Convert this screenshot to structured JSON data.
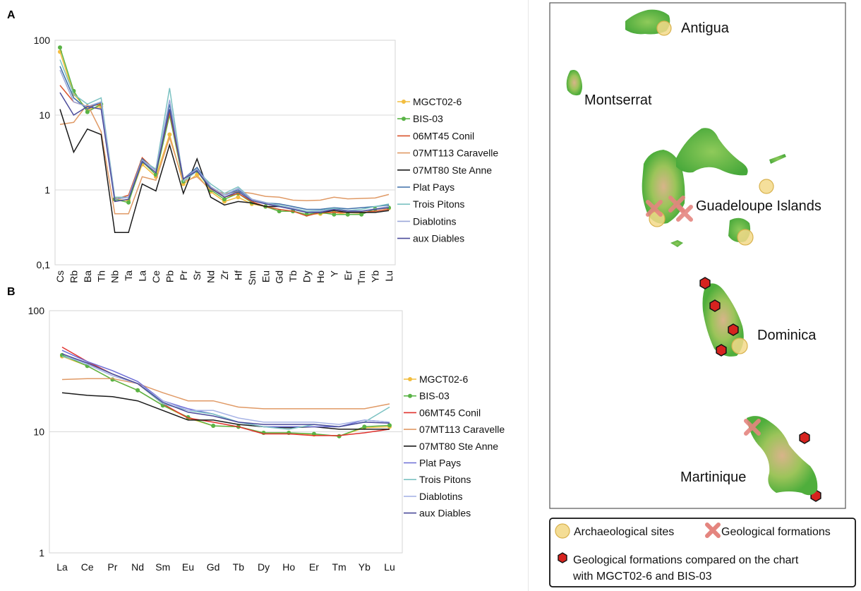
{
  "panels": {
    "a_letter": "A",
    "b_letter": "B"
  },
  "chart_data": [
    {
      "type": "line",
      "panel": "A",
      "yscale": "log",
      "ylim": [
        0.1,
        100
      ],
      "yticks": [
        "0,1",
        "1",
        "10",
        "100"
      ],
      "grid": true,
      "legend": "right",
      "categories": [
        "Cs",
        "Rb",
        "Ba",
        "Th",
        "Nb",
        "Ta",
        "La",
        "Ce",
        "Pb",
        "Pr",
        "Sr",
        "Nd",
        "Zr",
        "Hf",
        "Sm",
        "Eu",
        "Gd",
        "Tb",
        "Dy",
        "Ho",
        "Y",
        "Er",
        "Tm",
        "Yb",
        "Lu"
      ],
      "series": [
        {
          "name": "MGCT02-6",
          "color": "#f2bd3f",
          "marker": true,
          "values": [
            70,
            19,
            12,
            13,
            0.75,
            0.72,
            2.2,
            1.5,
            5.5,
            1.2,
            1.6,
            0.95,
            0.7,
            0.8,
            0.65,
            0.6,
            0.52,
            0.52,
            0.47,
            0.48,
            0.5,
            0.47,
            0.48,
            0.55,
            0.57
          ]
        },
        {
          "name": "BIS-03",
          "color": "#59b346",
          "marker": true,
          "values": [
            80,
            21,
            11,
            14,
            0.75,
            0.68,
            2.4,
            1.6,
            10,
            1.3,
            1.8,
            1,
            0.75,
            0.9,
            0.68,
            0.6,
            0.52,
            0.52,
            0.47,
            0.5,
            0.47,
            0.47,
            0.47,
            0.56,
            0.58
          ]
        },
        {
          "name": "06MT45 Conil",
          "color": "#d9532b",
          "values": [
            25,
            15,
            13,
            14,
            0.75,
            0.85,
            2.7,
            1.8,
            11,
            1.4,
            1.8,
            1.1,
            0.8,
            0.9,
            0.7,
            0.6,
            0.55,
            0.52,
            0.45,
            0.5,
            0.5,
            0.5,
            0.5,
            0.52,
            0.55
          ]
        },
        {
          "name": "07MT113 Caravelle",
          "color": "#e09a66",
          "values": [
            7.5,
            8,
            14,
            6,
            0.48,
            0.48,
            1.5,
            1.35,
            5,
            1.3,
            1.5,
            1,
            0.9,
            0.95,
            0.9,
            0.82,
            0.8,
            0.73,
            0.72,
            0.73,
            0.8,
            0.76,
            0.77,
            0.78,
            0.87
          ]
        },
        {
          "name": "07MT80 Ste Anne",
          "color": "#1a1a1a",
          "values": [
            12,
            3.2,
            6.5,
            5.5,
            0.27,
            0.27,
            1.2,
            0.97,
            4,
            0.9,
            2.6,
            0.8,
            0.63,
            0.7,
            0.67,
            0.6,
            0.6,
            0.57,
            0.5,
            0.5,
            0.53,
            0.5,
            0.5,
            0.5,
            0.53
          ]
        },
        {
          "name": "Plat Pays",
          "color": "#3d6ea8",
          "values": [
            45,
            17,
            12,
            15,
            0.75,
            0.8,
            2.6,
            1.8,
            14,
            1.4,
            2,
            1.1,
            0.85,
            1,
            0.75,
            0.67,
            0.65,
            0.6,
            0.55,
            0.55,
            0.58,
            0.56,
            0.58,
            0.6,
            0.63
          ]
        },
        {
          "name": "Trois Pitons",
          "color": "#7cc2c2",
          "values": [
            55,
            19,
            14,
            17,
            0.8,
            0.8,
            2.5,
            1.9,
            23,
            1.3,
            1.8,
            1.2,
            0.9,
            1.1,
            0.75,
            0.68,
            0.62,
            0.57,
            0.52,
            0.53,
            0.57,
            0.53,
            0.55,
            0.6,
            0.65
          ]
        },
        {
          "name": "Diablotins",
          "color": "#9ba7d9",
          "values": [
            40,
            15,
            13,
            15,
            0.75,
            0.8,
            2.5,
            1.8,
            16,
            1.4,
            1.9,
            1.1,
            0.85,
            1.05,
            0.75,
            0.68,
            0.6,
            0.57,
            0.5,
            0.52,
            0.55,
            0.53,
            0.52,
            0.56,
            0.6
          ]
        },
        {
          "name": "aux Diables",
          "color": "#4b4b9a",
          "values": [
            20,
            10,
            13,
            12,
            0.7,
            0.75,
            2.4,
            1.7,
            12,
            1.4,
            1.8,
            1.05,
            0.8,
            0.95,
            0.72,
            0.65,
            0.6,
            0.55,
            0.5,
            0.5,
            0.55,
            0.52,
            0.52,
            0.55,
            0.58
          ]
        }
      ]
    },
    {
      "type": "line",
      "panel": "B",
      "yscale": "log",
      "ylim": [
        1,
        100
      ],
      "yticks": [
        "1",
        "10",
        "100"
      ],
      "grid": true,
      "legend": "right",
      "categories": [
        "La",
        "Ce",
        "Pr",
        "Nd",
        "Sm",
        "Eu",
        "Gd",
        "Tb",
        "Dy",
        "Ho",
        "Er",
        "Tm",
        "Yb",
        "Lu"
      ],
      "series": [
        {
          "name": "MGCT02-6",
          "color": "#f2bd3f",
          "marker": true,
          "values": [
            42,
            35,
            27,
            22,
            16.5,
            13,
            11.2,
            11,
            9.8,
            9.8,
            9.5,
            9.2,
            10.8,
            11
          ]
        },
        {
          "name": "BIS-03",
          "color": "#59b346",
          "marker": true,
          "values": [
            43,
            35,
            27,
            22,
            16.5,
            13.2,
            11.2,
            11,
            9.8,
            9.8,
            9.6,
            9.2,
            11,
            11.3
          ]
        },
        {
          "name": "06MT45 Conil",
          "color": "#e0322e",
          "values": [
            50,
            38,
            30,
            25,
            17,
            13,
            12,
            11,
            9.6,
            9.6,
            9.3,
            9.3,
            9.8,
            10.5
          ]
        },
        {
          "name": "07MT113 Caravelle",
          "color": "#e09a66",
          "values": [
            27,
            27.5,
            27.5,
            25,
            21,
            18,
            18,
            16,
            15.5,
            15.5,
            15.5,
            15.5,
            15.5,
            17
          ]
        },
        {
          "name": "07MT80 Ste Anne",
          "color": "#1a1a1a",
          "values": [
            21,
            20,
            19.5,
            18,
            15,
            12.5,
            12.5,
            11.5,
            11,
            10.8,
            11,
            10.5,
            10.5,
            10.5
          ]
        },
        {
          "name": "Plat Pays",
          "color": "#6d6ed6",
          "values": [
            47,
            38,
            32,
            26,
            18,
            15.5,
            14,
            12,
            11,
            11,
            11,
            11,
            12.5,
            12
          ]
        },
        {
          "name": "Trois Pitons",
          "color": "#7cc2c2",
          "values": [
            42,
            37,
            30,
            25,
            17,
            15,
            14,
            12,
            11,
            10.5,
            11.5,
            11,
            12,
            16
          ]
        },
        {
          "name": "Diablotins",
          "color": "#a8b4e6",
          "values": [
            44,
            36,
            29,
            25,
            18,
            15,
            15,
            13,
            12,
            12,
            12,
            11.5,
            12.5,
            12
          ]
        },
        {
          "name": "aux Diables",
          "color": "#4b4b9a",
          "values": [
            44,
            37,
            30,
            25,
            17.5,
            14.5,
            13.5,
            12,
            11.5,
            11.5,
            11.5,
            11,
            12,
            11.8
          ]
        }
      ]
    }
  ],
  "map": {
    "islands": [
      {
        "name": "Antigua"
      },
      {
        "name": "Montserrat"
      },
      {
        "name": "Guadeloupe Islands"
      },
      {
        "name": "Dominica"
      },
      {
        "name": "Martinique"
      }
    ],
    "legend": {
      "archaeological": "Archaeological sites",
      "geological": "Geological formations",
      "compared_line1": "Geological formations compared on the chart",
      "compared_line2": "with MGCT02-6 and BIS-03"
    },
    "colors": {
      "site_fill": "#f3d98a",
      "site_stroke": "#d8b24e",
      "cross": "#e4857f",
      "hexagon_fill": "#d6231f",
      "island_green": "#6bbf47",
      "island_relief": "#caa77a"
    }
  }
}
